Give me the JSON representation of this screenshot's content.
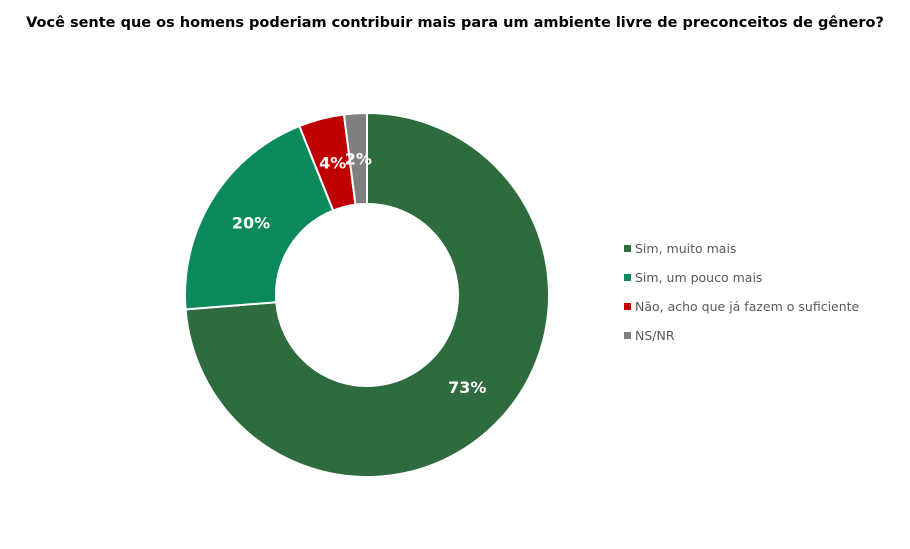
{
  "chart_data": {
    "type": "pie",
    "donut": true,
    "title": "Você sente que os homens poderiam contribuir mais para um ambiente livre de preconceitos de gênero?",
    "legend_position": "right",
    "slices": [
      {
        "name": "Sim, muito mais",
        "value": 73,
        "label": "73%",
        "color": "#2e6b3f"
      },
      {
        "name": "Sim, um pouco mais",
        "value": 20,
        "label": "20%",
        "color": "#0a8a5a"
      },
      {
        "name": "Não, acho que já fazem o suficiente",
        "value": 4,
        "label": "4%",
        "color": "#c00000"
      },
      {
        "name": "NS/NR",
        "value": 2,
        "label": "2%",
        "color": "#7f7f7f"
      }
    ]
  }
}
